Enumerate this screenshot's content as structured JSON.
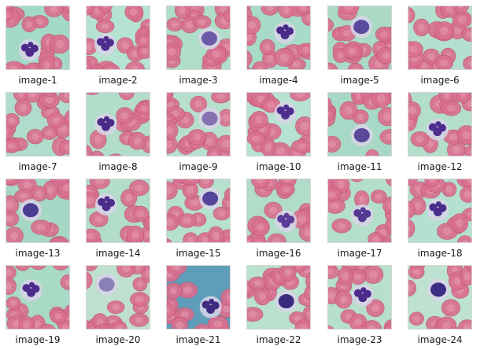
{
  "gallery": {
    "items": [
      {
        "label": "image-1",
        "background": "#a3dac7",
        "nucleus": "lobed",
        "nucleus_color": "#4b2a8a",
        "wbc": true
      },
      {
        "label": "image-2",
        "background": "#b5e3d1",
        "nucleus": "lobed",
        "nucleus_color": "#4f2d8f",
        "wbc": true
      },
      {
        "label": "image-3",
        "background": "#aedec9",
        "nucleus": "round",
        "nucleus_color": "#6a5aa8",
        "wbc": true
      },
      {
        "label": "image-4",
        "background": "#a7dbc8",
        "nucleus": "lobed",
        "nucleus_color": "#4a2a88",
        "wbc": true
      },
      {
        "label": "image-5",
        "background": "#aad9c5",
        "nucleus": "round",
        "nucleus_color": "#5a4a9e",
        "wbc": true
      },
      {
        "label": "image-6",
        "background": "#b4e0cf",
        "nucleus": "none",
        "nucleus_color": "#000000",
        "wbc": false
      },
      {
        "label": "image-7",
        "background": "#b0dccb",
        "nucleus": "none",
        "nucleus_color": "#000000",
        "wbc": false
      },
      {
        "label": "image-8",
        "background": "#b2ddcb",
        "nucleus": "lobed",
        "nucleus_color": "#4a2a88",
        "wbc": true
      },
      {
        "label": "image-9",
        "background": "#b7dfcd",
        "nucleus": "round",
        "nucleus_color": "#8672b0",
        "wbc": true
      },
      {
        "label": "image-10",
        "background": "#b6e2d2",
        "nucleus": "lobed",
        "nucleus_color": "#4e2e8e",
        "wbc": true
      },
      {
        "label": "image-11",
        "background": "#a8d9c6",
        "nucleus": "round",
        "nucleus_color": "#5a4898",
        "wbc": true
      },
      {
        "label": "image-12",
        "background": "#b3deca",
        "nucleus": "lobed",
        "nucleus_color": "#4c2c8c",
        "wbc": true
      },
      {
        "label": "image-13",
        "background": "#a5d8c4",
        "nucleus": "round",
        "nucleus_color": "#4b3d92",
        "wbc": true
      },
      {
        "label": "image-14",
        "background": "#b1ddc9",
        "nucleus": "lobed",
        "nucleus_color": "#4c2c8b",
        "wbc": true
      },
      {
        "label": "image-15",
        "background": "#b5e0cd",
        "nucleus": "round",
        "nucleus_color": "#54449a",
        "wbc": true
      },
      {
        "label": "image-16",
        "background": "#b0dcc9",
        "nucleus": "lobed",
        "nucleus_color": "#5a3c98",
        "wbc": true
      },
      {
        "label": "image-17",
        "background": "#b4dfcb",
        "nucleus": "lobed",
        "nucleus_color": "#553894",
        "wbc": true
      },
      {
        "label": "image-18",
        "background": "#b3e0cf",
        "nucleus": "lobed",
        "nucleus_color": "#4a2c8c",
        "wbc": true
      },
      {
        "label": "image-19",
        "background": "#a8dac6",
        "nucleus": "lobed",
        "nucleus_color": "#4a2a8a",
        "wbc": true
      },
      {
        "label": "image-20",
        "background": "#bfe0cf",
        "nucleus": "round",
        "nucleus_color": "#8a80b8",
        "wbc": true
      },
      {
        "label": "image-21",
        "background": "#5f9eb8",
        "nucleus": "lobed",
        "nucleus_color": "#3e2a7e",
        "wbc": true
      },
      {
        "label": "image-22",
        "background": "#b9e1d0",
        "nucleus": "round",
        "nucleus_color": "#3a2a80",
        "wbc": true
      },
      {
        "label": "image-23",
        "background": "#b6dfcc",
        "nucleus": "lobed",
        "nucleus_color": "#4a2a8a",
        "wbc": true
      },
      {
        "label": "image-24",
        "background": "#bde2d2",
        "nucleus": "round",
        "nucleus_color": "#3c2c84",
        "wbc": true
      }
    ]
  },
  "colors": {
    "rbc_fill": "#d9708f",
    "rbc_center": "#e89aae",
    "rbc_edge": "#c45a7a",
    "cytoplasm": "#d8d4e6",
    "label_text": "#1a1a1a"
  }
}
